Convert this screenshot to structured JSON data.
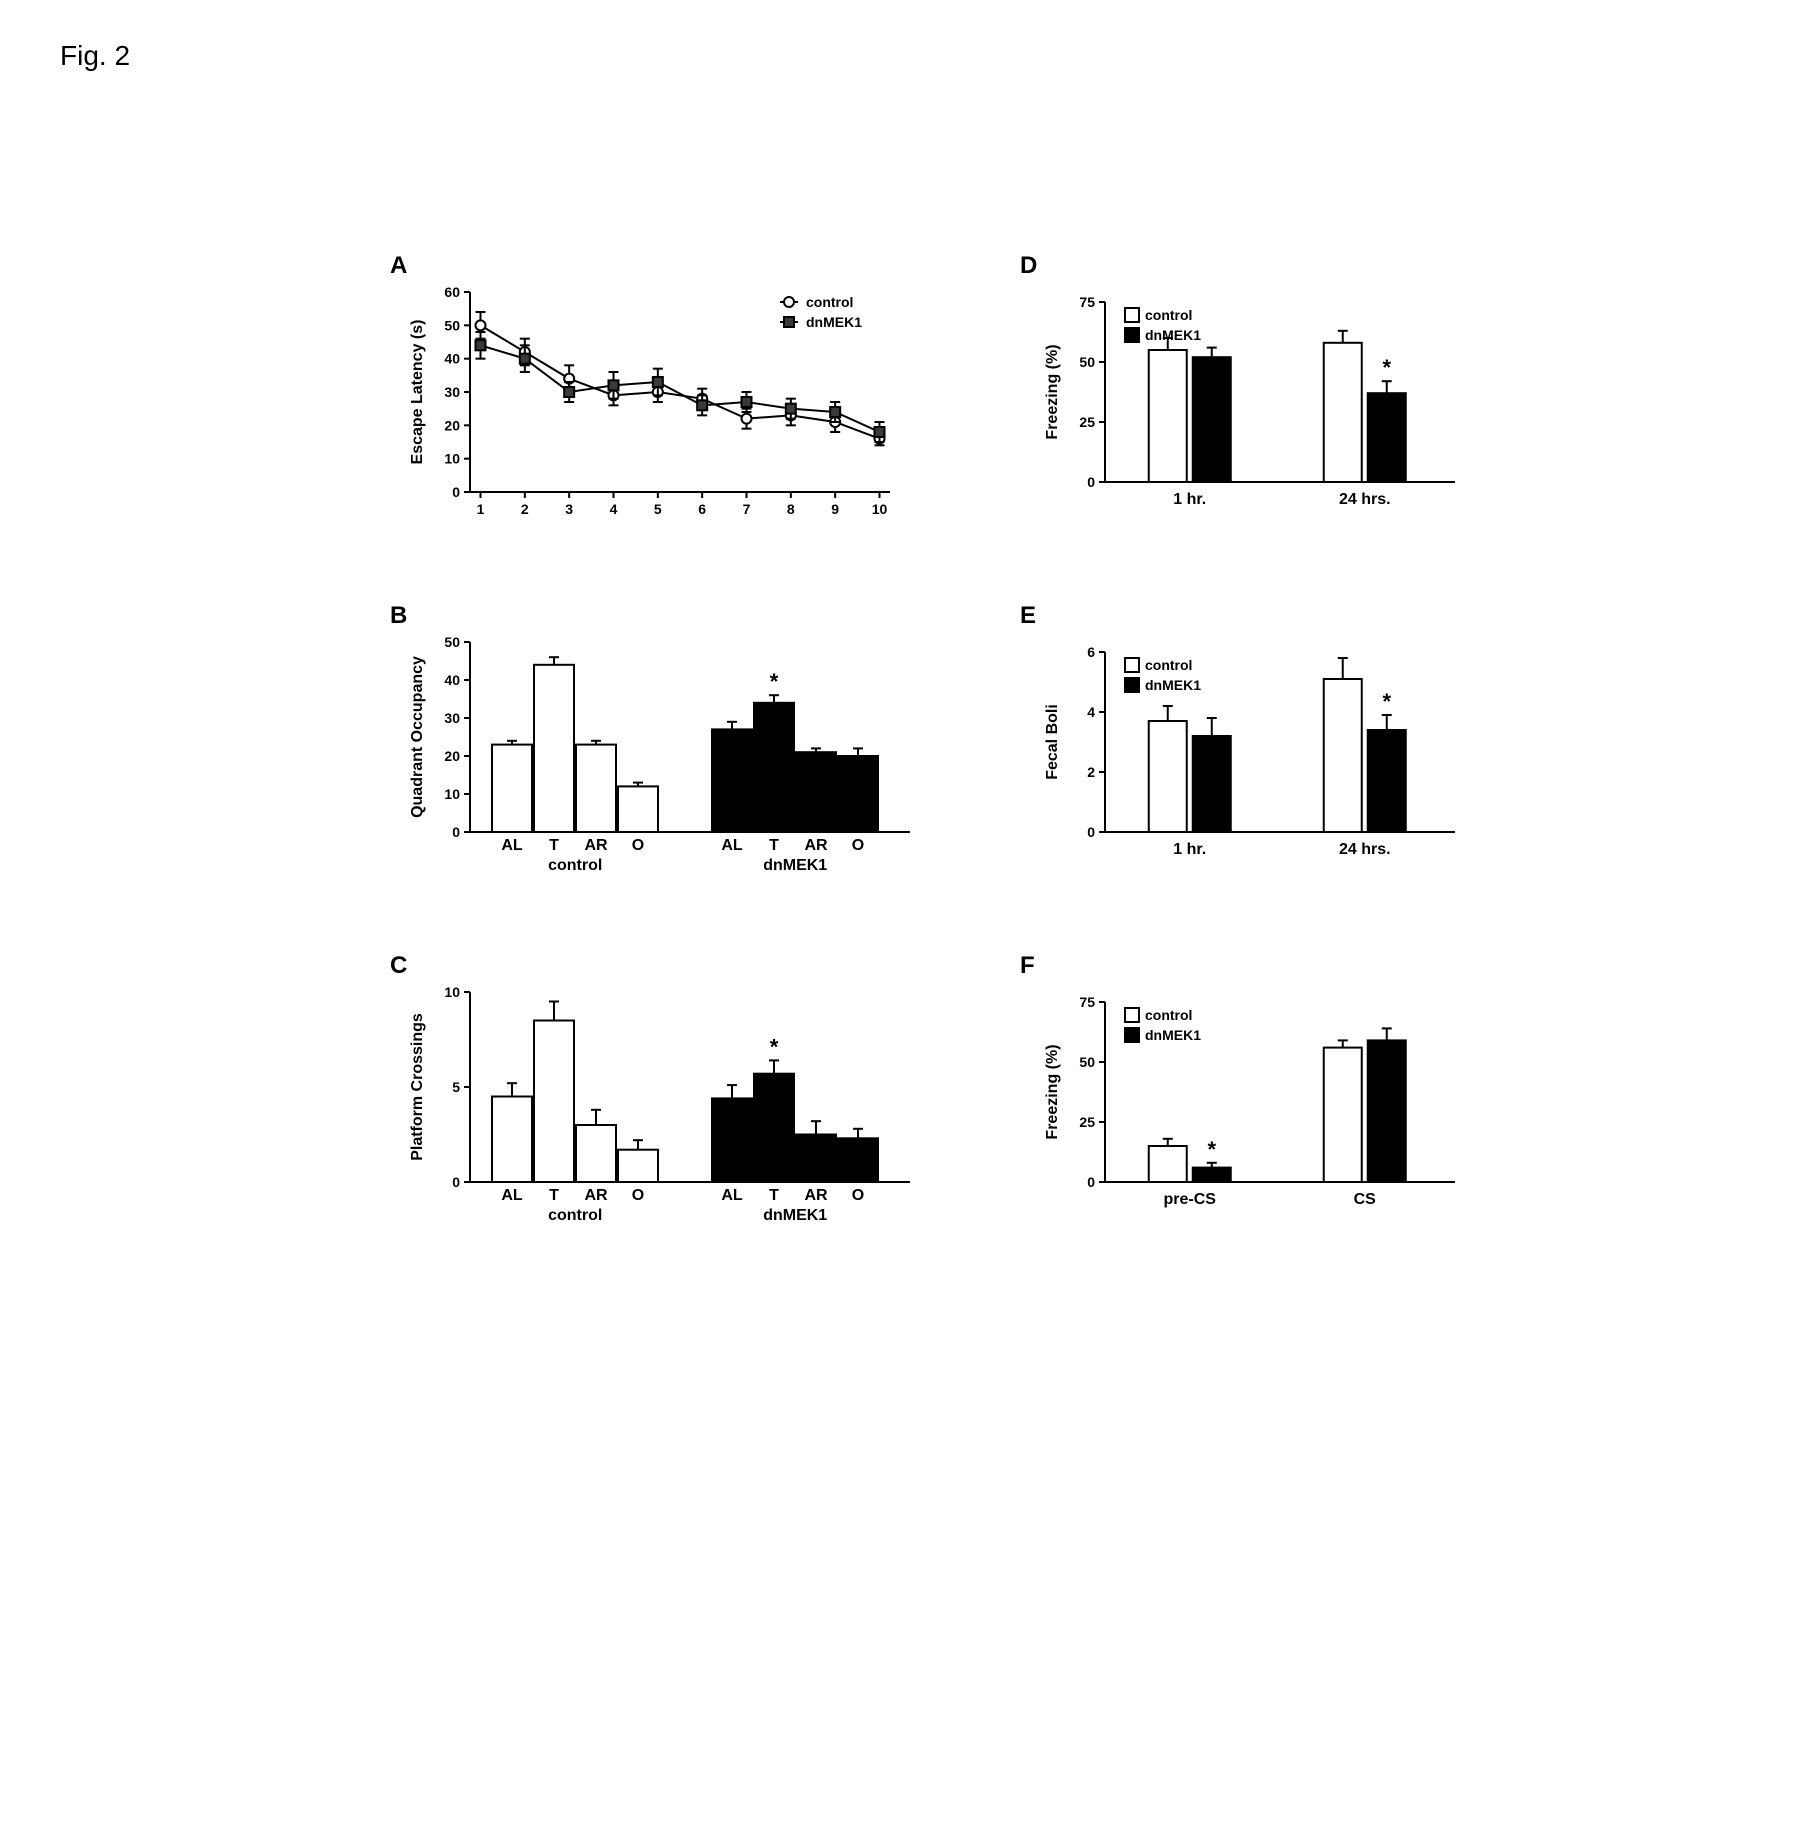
{
  "figure_label": "Fig. 2",
  "background_color": "#ffffff",
  "colors": {
    "open_fill": "#ffffff",
    "filled_fill": "#000000",
    "marker_filled": "#3a3a3a",
    "axis": "#000000"
  },
  "fonts": {
    "panel_letter_size_pt": 18,
    "axis_label_size_pt": 12,
    "tick_label_size_pt": 10,
    "legend_size_pt": 10
  },
  "panels": {
    "A": {
      "type": "line",
      "ylabel": "Escape Latency (s)",
      "xlim": [
        1,
        10
      ],
      "ylim": [
        0,
        60
      ],
      "ytick_step": 10,
      "x": [
        1,
        2,
        3,
        4,
        5,
        6,
        7,
        8,
        9,
        10
      ],
      "series": {
        "control": {
          "marker": "open-circle",
          "color": "#000000",
          "y": [
            50,
            42,
            34,
            29,
            30,
            28,
            22,
            23,
            21,
            16
          ],
          "err": [
            4,
            4,
            4,
            3,
            3,
            3,
            3,
            3,
            3,
            2
          ]
        },
        "dnMEK1": {
          "marker": "filled-square",
          "color": "#3a3a3a",
          "y": [
            44,
            40,
            30,
            32,
            33,
            26,
            27,
            25,
            24,
            18
          ],
          "err": [
            4,
            4,
            3,
            4,
            4,
            3,
            3,
            3,
            3,
            3
          ]
        }
      },
      "legend": [
        "control",
        "dnMEK1"
      ]
    },
    "B": {
      "type": "grouped-bar",
      "ylabel": "Quadrant Occupancy",
      "ylim": [
        0,
        50
      ],
      "ytick_step": 10,
      "categories": [
        "AL",
        "T",
        "AR",
        "O"
      ],
      "groups": {
        "control": {
          "fill": "open",
          "label": "control",
          "values": [
            23,
            44,
            23,
            12
          ],
          "err": [
            1,
            2,
            1,
            1
          ],
          "sig": [
            false,
            false,
            false,
            false
          ]
        },
        "dnMEK1": {
          "fill": "filled",
          "label": "dnMEK1",
          "values": [
            27,
            34,
            21,
            20
          ],
          "err": [
            2,
            2,
            1,
            2
          ],
          "sig": [
            false,
            true,
            false,
            false
          ]
        }
      }
    },
    "C": {
      "type": "grouped-bar",
      "ylabel": "Platform Crossings",
      "ylim": [
        0,
        10
      ],
      "ytick_step": 5,
      "categories": [
        "AL",
        "T",
        "AR",
        "O"
      ],
      "groups": {
        "control": {
          "fill": "open",
          "label": "control",
          "values": [
            4.5,
            8.5,
            3.0,
            1.7
          ],
          "err": [
            0.7,
            1.0,
            0.8,
            0.5
          ],
          "sig": [
            false,
            false,
            false,
            false
          ]
        },
        "dnMEK1": {
          "fill": "filled",
          "label": "dnMEK1",
          "values": [
            4.4,
            5.7,
            2.5,
            2.3
          ],
          "err": [
            0.7,
            0.7,
            0.7,
            0.5
          ],
          "sig": [
            false,
            true,
            false,
            false
          ]
        }
      }
    },
    "D": {
      "type": "paired-bar",
      "ylabel": "Freezing (%)",
      "ylim": [
        0,
        75
      ],
      "ytick_step": 25,
      "legend": [
        "control",
        "dnMEK1"
      ],
      "categories": [
        "1 hr.",
        "24 hrs."
      ],
      "bars": {
        "control": {
          "fill": "open",
          "values": [
            55,
            58
          ],
          "err": [
            5,
            5
          ],
          "sig": [
            false,
            false
          ]
        },
        "dnMEK1": {
          "fill": "filled",
          "values": [
            52,
            37
          ],
          "err": [
            4,
            5
          ],
          "sig": [
            false,
            true
          ]
        }
      }
    },
    "E": {
      "type": "paired-bar",
      "ylabel": "Fecal Boli",
      "ylim": [
        0,
        6
      ],
      "ytick_step": 2,
      "legend": [
        "control",
        "dnMEK1"
      ],
      "categories": [
        "1 hr.",
        "24 hrs."
      ],
      "bars": {
        "control": {
          "fill": "open",
          "values": [
            3.7,
            5.1
          ],
          "err": [
            0.5,
            0.7
          ],
          "sig": [
            false,
            false
          ]
        },
        "dnMEK1": {
          "fill": "filled",
          "values": [
            3.2,
            3.4
          ],
          "err": [
            0.6,
            0.5
          ],
          "sig": [
            false,
            true
          ]
        }
      }
    },
    "F": {
      "type": "paired-bar",
      "ylabel": "Freezing (%)",
      "ylim": [
        0,
        75
      ],
      "ytick_step": 25,
      "legend": [
        "control",
        "dnMEK1"
      ],
      "categories": [
        "pre-CS",
        "CS"
      ],
      "bars": {
        "control": {
          "fill": "open",
          "values": [
            15,
            56
          ],
          "err": [
            3,
            3
          ],
          "sig": [
            false,
            false
          ]
        },
        "dnMEK1": {
          "fill": "filled",
          "values": [
            6,
            59
          ],
          "err": [
            2,
            5
          ],
          "sig": [
            true,
            false
          ]
        }
      }
    }
  }
}
